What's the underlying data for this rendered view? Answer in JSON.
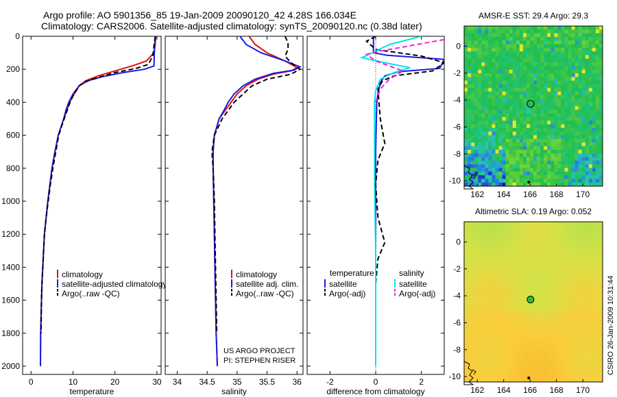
{
  "header": {
    "line1": "Argo profile: AO 5901356_85 19-Jan-2009 20090120_42 4.28S 166.034E",
    "line2": "Climatology: CARS2006. Satellite-adjusted climatology: synTS_20090120.nc (0.38d later)"
  },
  "credits": {
    "project": "US ARGO PROJECT",
    "pi": "PI: STEPHEN RISER",
    "stamp": "CSIRO 26-Jan-2009 10:31:44"
  },
  "colors": {
    "climatology": "#dd1111",
    "satellite": "#1a1ae6",
    "argo": "#000000",
    "salinity_sat": "#00e5ee",
    "salinity_argo": "#ee22dd"
  },
  "chart_data": [
    {
      "id": "temperature",
      "type": "line",
      "xlabel": "temperature",
      "ylabel": "",
      "xlim": [
        -2,
        31
      ],
      "ylim": [
        2050,
        0
      ],
      "xticks": [
        0,
        10,
        20,
        30
      ],
      "yticks": [
        0,
        200,
        400,
        600,
        800,
        1000,
        1200,
        1400,
        1600,
        1800,
        2000
      ],
      "legend": [
        "climatology",
        "satellite-adjusted climatology",
        "Argo(..raw -QC)"
      ],
      "series": [
        {
          "name": "climatology",
          "color": "#dd1111",
          "dash": false,
          "x": [
            29.7,
            29.6,
            29.3,
            27.5,
            24,
            20,
            16,
            13,
            11.5,
            10.3,
            9.2,
            8.5,
            7.8,
            6.5,
            5.7,
            5,
            4.5,
            4,
            3.6,
            3.2,
            3,
            2.8,
            2.6,
            2.5,
            2.4,
            2.3,
            2.25
          ],
          "y": [
            0,
            50,
            100,
            150,
            180,
            210,
            240,
            270,
            300,
            350,
            400,
            450,
            500,
            600,
            700,
            800,
            900,
            1000,
            1100,
            1200,
            1300,
            1400,
            1500,
            1600,
            1700,
            1800,
            2000
          ]
        },
        {
          "name": "satellite-adjusted climatology",
          "color": "#1a1ae6",
          "dash": false,
          "x": [
            29.6,
            29.5,
            29.4,
            29.3,
            27,
            22,
            17,
            13.5,
            11.5,
            10,
            9,
            8.3,
            7.8,
            6.5,
            5.7,
            5,
            4.5,
            4,
            3.6,
            3.2,
            3,
            2.8,
            2.6,
            2.5,
            2.4,
            2.3,
            2.25
          ],
          "y": [
            0,
            50,
            100,
            180,
            200,
            220,
            245,
            270,
            300,
            350,
            400,
            450,
            500,
            600,
            700,
            800,
            900,
            1000,
            1100,
            1200,
            1300,
            1400,
            1500,
            1600,
            1700,
            1800,
            2000
          ]
        },
        {
          "name": "Argo(..raw -QC)",
          "color": "#000000",
          "dash": true,
          "x": [
            29.6,
            29.3,
            29.0,
            28,
            25,
            20,
            16,
            13,
            11.5,
            10.2,
            9.3,
            8.6,
            7.9,
            6.6,
            5.9,
            5.2,
            4.6,
            4.1,
            3.6,
            3.2,
            3,
            2.8,
            2.6,
            2.5,
            2.4
          ],
          "y": [
            0,
            60,
            120,
            170,
            195,
            220,
            250,
            275,
            300,
            350,
            400,
            450,
            500,
            600,
            700,
            800,
            900,
            1000,
            1100,
            1200,
            1300,
            1400,
            1500,
            1600,
            1800
          ]
        }
      ]
    },
    {
      "id": "salinity",
      "type": "line",
      "xlabel": "salinity",
      "ylabel": "",
      "xlim": [
        33.8,
        36.1
      ],
      "ylim": [
        2050,
        0
      ],
      "xticks": [
        34,
        34.5,
        35,
        35.5,
        36
      ],
      "yticks": [
        0,
        200,
        400,
        600,
        800,
        1000,
        1200,
        1400,
        1600,
        1800,
        2000
      ],
      "legend": [
        "climatology",
        "satellite adj. clim.",
        "Argo(..raw -QC)"
      ],
      "series": [
        {
          "name": "climatology",
          "color": "#dd1111",
          "dash": false,
          "x": [
            35.2,
            35.3,
            35.5,
            35.8,
            36.0,
            35.9,
            35.6,
            35.35,
            35.15,
            35.0,
            34.9,
            34.8,
            34.7,
            34.62,
            34.6,
            34.6,
            34.61,
            34.62,
            34.63,
            34.64,
            34.65,
            34.66,
            34.67
          ],
          "y": [
            0,
            50,
            100,
            150,
            190,
            210,
            230,
            260,
            300,
            350,
            400,
            450,
            500,
            600,
            700,
            800,
            1000,
            1200,
            1400,
            1600,
            1800,
            1900,
            2000
          ]
        },
        {
          "name": "satellite adj. clim.",
          "color": "#1a1ae6",
          "dash": false,
          "x": [
            35.05,
            35.15,
            35.4,
            35.8,
            36.05,
            35.95,
            35.6,
            35.3,
            35.1,
            34.95,
            34.85,
            34.78,
            34.7,
            34.62,
            34.6,
            34.6,
            34.61,
            34.62,
            34.63,
            34.64,
            34.65,
            34.66,
            34.67
          ],
          "y": [
            0,
            50,
            100,
            150,
            185,
            205,
            225,
            260,
            300,
            350,
            400,
            450,
            500,
            600,
            700,
            800,
            1000,
            1200,
            1400,
            1600,
            1800,
            1900,
            2000
          ]
        },
        {
          "name": "Argo(..raw -QC)",
          "color": "#000000",
          "dash": true,
          "x": [
            35.8,
            35.85,
            35.85,
            35.8,
            35.9,
            36.05,
            35.9,
            35.5,
            35.25,
            35.1,
            34.95,
            34.85,
            34.75,
            34.62,
            34.58,
            34.6,
            34.62,
            34.63,
            34.64,
            34.65,
            34.66
          ],
          "y": [
            0,
            40,
            80,
            120,
            160,
            200,
            230,
            260,
            300,
            350,
            400,
            450,
            500,
            600,
            700,
            800,
            1000,
            1200,
            1400,
            1600,
            1800
          ]
        }
      ]
    },
    {
      "id": "difference",
      "type": "line",
      "xlabel": "difference from climatology",
      "ylabel": "",
      "xlim": [
        -3,
        3
      ],
      "ylim": [
        2050,
        0
      ],
      "xticks": [
        -2,
        0,
        2
      ],
      "yticks": [
        0,
        200,
        400,
        600,
        800,
        1000,
        1200,
        1400,
        1600,
        1800,
        2000
      ],
      "legend_headers": [
        "temperature",
        "salinity"
      ],
      "legend": [
        "satellite",
        "Argo(-adj)",
        "satellite",
        "Argo(-adj)"
      ],
      "series": [
        {
          "name": "temperature satellite",
          "color": "#1a1ae6",
          "dash": false,
          "x": [
            -0.1,
            -0.1,
            -0.1,
            0.5,
            3.0,
            2.8,
            1.0,
            0.4,
            0.2,
            0.1,
            0.05,
            0.03,
            0.0,
            0.0,
            0.0,
            0.0,
            0.0
          ],
          "y": [
            0,
            60,
            100,
            115,
            140,
            195,
            215,
            240,
            280,
            350,
            400,
            500,
            700,
            1000,
            1400,
            1800,
            2000
          ]
        },
        {
          "name": "temperature Argo(-adj)",
          "color": "#000000",
          "dash": true,
          "x": [
            0.0,
            -0.4,
            0.0,
            2.0,
            3.0,
            2.5,
            0.8,
            0.3,
            0.1,
            0.2,
            0.4,
            0.1,
            0.0,
            0.1,
            0.4,
            0.1,
            0.0,
            0.0
          ],
          "y": [
            0,
            30,
            80,
            120,
            160,
            210,
            240,
            270,
            320,
            500,
            650,
            750,
            900,
            1100,
            1250,
            1350,
            1500,
            1800
          ]
        },
        {
          "name": "salinity satellite",
          "color": "#00e5ee",
          "dash": false,
          "x": [
            2.0,
            0.6,
            -0.6,
            0.4,
            1.5,
            0.8,
            0.2,
            0.0,
            -0.05,
            -0.05,
            -0.05,
            0.0,
            0.0,
            0.0
          ],
          "y": [
            0,
            50,
            130,
            160,
            190,
            220,
            260,
            330,
            400,
            600,
            900,
            1300,
            1700,
            2000
          ]
        },
        {
          "name": "salinity Argo(-adj)",
          "color": "#ee22dd",
          "dash": true,
          "x": [
            3.0,
            2.0,
            1.0,
            0.0,
            -0.4,
            0.0,
            1.2,
            0.6,
            0.2,
            0.0
          ],
          "y": [
            20,
            45,
            70,
            95,
            110,
            150,
            210,
            260,
            320,
            400
          ]
        }
      ]
    },
    {
      "id": "sst_map",
      "type": "heatmap",
      "title": "AMSR-E SST: 29.4 Argo: 29.3",
      "xlim": [
        161,
        171.5
      ],
      "ylim": [
        -10.4,
        1.5
      ],
      "xticks": [
        162,
        164,
        166,
        168,
        170
      ],
      "yticks": [
        0,
        -2,
        -4,
        -6,
        -8,
        -10
      ],
      "marker": {
        "lon": 166.034,
        "lat": -4.28,
        "fill": "none"
      }
    },
    {
      "id": "sla_map",
      "type": "heatmap",
      "title": "Altimetric SLA: 0.19 Argo: 0.052",
      "xlim": [
        161,
        171.5
      ],
      "ylim": [
        -10.4,
        1.5
      ],
      "xticks": [
        162,
        164,
        166,
        168,
        170
      ],
      "yticks": [
        0,
        -2,
        -4,
        -6,
        -8,
        -10
      ],
      "marker": {
        "lon": 166.034,
        "lat": -4.28,
        "fill": "#33bb33"
      }
    }
  ]
}
